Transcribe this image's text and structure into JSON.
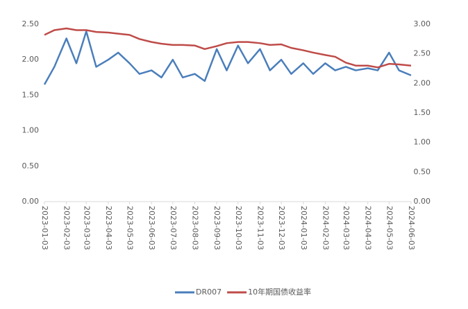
{
  "chart_data": {
    "type": "line",
    "x": [
      "2023-01-03",
      "2023-01-17",
      "2023-02-03",
      "2023-02-17",
      "2023-03-03",
      "2023-03-17",
      "2023-04-03",
      "2023-04-17",
      "2023-05-03",
      "2023-05-17",
      "2023-06-03",
      "2023-06-17",
      "2023-07-03",
      "2023-07-17",
      "2023-08-03",
      "2023-08-17",
      "2023-09-03",
      "2023-09-17",
      "2023-10-03",
      "2023-10-17",
      "2023-11-03",
      "2023-11-17",
      "2023-12-03",
      "2023-12-17",
      "2024-01-03",
      "2024-01-17",
      "2024-02-03",
      "2024-02-17",
      "2024-03-03",
      "2024-03-17",
      "2024-04-03",
      "2024-04-17",
      "2024-05-03",
      "2024-05-17",
      "2024-06-03"
    ],
    "series": [
      {
        "name": "DR007",
        "color": "#4a7ebb",
        "values": [
          1.65,
          1.9,
          2.3,
          1.95,
          2.4,
          1.9,
          2.0,
          2.1,
          1.95,
          1.8,
          1.85,
          1.75,
          2.0,
          1.75,
          1.8,
          1.7,
          2.15,
          1.85,
          2.2,
          1.95,
          2.15,
          1.85,
          2.0,
          1.8,
          1.95,
          1.8,
          1.95,
          1.85,
          1.9,
          1.85,
          1.88,
          1.85,
          2.1,
          1.85,
          1.78
        ]
      },
      {
        "name": "10年期国债收益率",
        "color": "#be4b48",
        "axis": "y2",
        "values": [
          2.82,
          2.9,
          2.93,
          2.9,
          2.9,
          2.87,
          2.86,
          2.84,
          2.82,
          2.75,
          2.7,
          2.67,
          2.65,
          2.65,
          2.64,
          2.58,
          2.63,
          2.68,
          2.7,
          2.7,
          2.68,
          2.65,
          2.66,
          2.6,
          2.56,
          2.52,
          2.48,
          2.45,
          2.35,
          2.3,
          2.3,
          2.27,
          2.33,
          2.32,
          2.3
        ]
      }
    ],
    "xlim": [
      "2023-01-03",
      "2024-06-03"
    ],
    "xticks": [
      "2023-01-03",
      "2023-02-03",
      "2023-03-03",
      "2023-04-03",
      "2023-05-03",
      "2023-06-03",
      "2023-07-03",
      "2023-08-03",
      "2023-09-03",
      "2023-10-03",
      "2023-11-03",
      "2023-12-03",
      "2024-01-03",
      "2024-02-03",
      "2024-03-03",
      "2024-04-03",
      "2024-05-03",
      "2024-06-03"
    ],
    "ylim": [
      0,
      2.5
    ],
    "yticks": [
      {
        "value": 0,
        "label": "0.00"
      },
      {
        "value": 0.5,
        "label": "0.50"
      },
      {
        "value": 1,
        "label": "1.00"
      },
      {
        "value": 1.5,
        "label": "1.50"
      },
      {
        "value": 2,
        "label": "2.00"
      },
      {
        "value": 2.5,
        "label": "2.50"
      }
    ],
    "y2lim": [
      0,
      3
    ],
    "y2ticks": [
      {
        "value": 0,
        "label": "0.00"
      },
      {
        "value": 0.5,
        "label": "0.50"
      },
      {
        "value": 1,
        "label": "1.00"
      },
      {
        "value": 1.5,
        "label": "1.50"
      },
      {
        "value": 2,
        "label": "2.00"
      },
      {
        "value": 2.5,
        "label": "2.50"
      },
      {
        "value": 3,
        "label": "3.00"
      }
    ],
    "legend": "bottom"
  }
}
